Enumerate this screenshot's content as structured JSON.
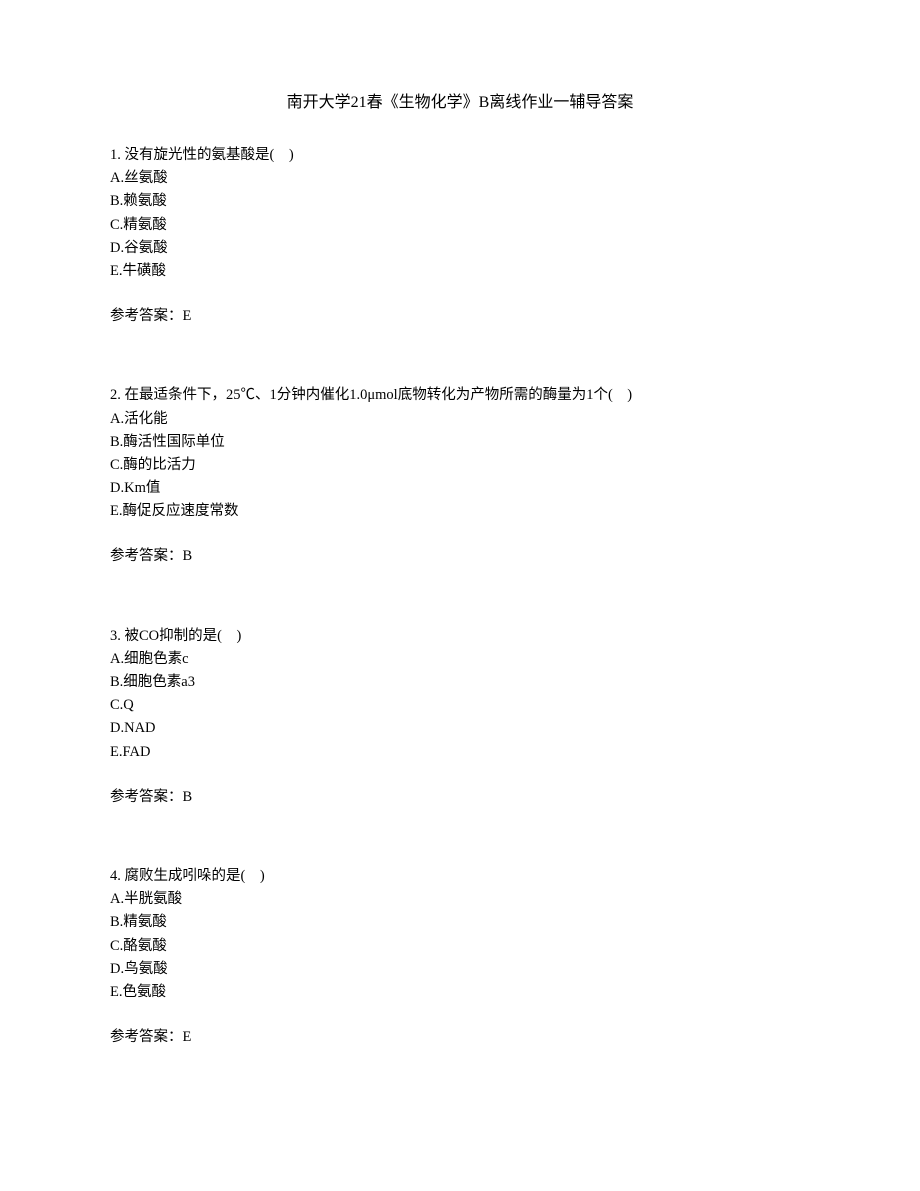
{
  "title": "南开大学21春《生物化学》B离线作业一辅导答案",
  "questions": [
    {
      "number": "1.",
      "text": "没有旋光性的氨基酸是(　)",
      "options": [
        "A.丝氨酸",
        "B.赖氨酸",
        "C.精氨酸",
        "D.谷氨酸",
        "E.牛磺酸"
      ],
      "answer_label": "参考答案：",
      "answer": "E"
    },
    {
      "number": "2.",
      "text": "在最适条件下，25℃、1分钟内催化1.0μmol底物转化为产物所需的酶量为1个(　)",
      "options": [
        "A.活化能",
        "B.酶活性国际单位",
        "C.酶的比活力",
        "D.Km值",
        "E.酶促反应速度常数"
      ],
      "answer_label": "参考答案：",
      "answer": "B"
    },
    {
      "number": "3.",
      "text": "被CO抑制的是(　)",
      "options": [
        "A.细胞色素c",
        "B.细胞色素a3",
        "C.Q",
        "D.NAD",
        "E.FAD"
      ],
      "answer_label": "参考答案：",
      "answer": "B"
    },
    {
      "number": "4.",
      "text": "腐败生成吲哚的是(　)",
      "options": [
        "A.半胱氨酸",
        "B.精氨酸",
        "C.酪氨酸",
        "D.鸟氨酸",
        "E.色氨酸"
      ],
      "answer_label": "参考答案：",
      "answer": "E"
    }
  ]
}
